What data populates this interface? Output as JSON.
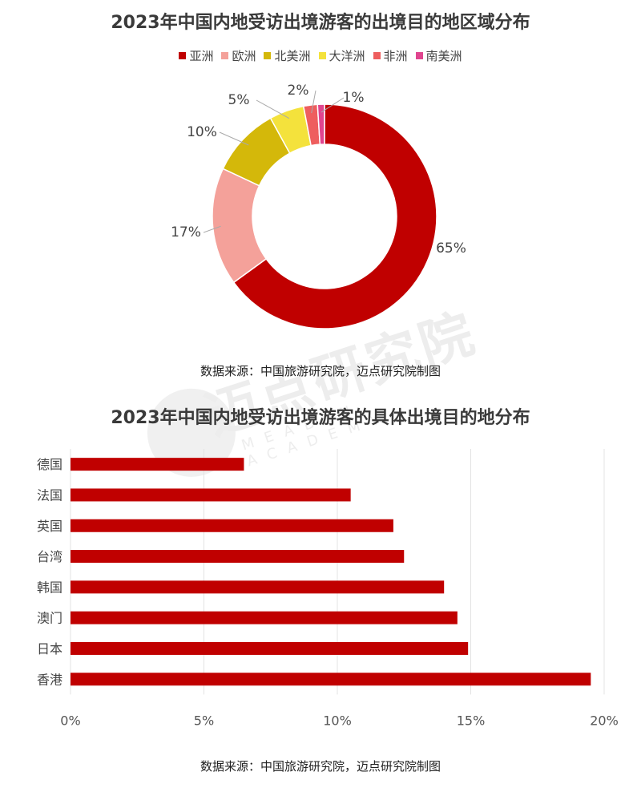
{
  "chart_data": [
    {
      "type": "pie",
      "title": "2023年中国内地受访出境游客的出境目的地区域分布",
      "legend_position": "top",
      "labels": [
        "亚洲",
        "欧洲",
        "北美洲",
        "大洋洲",
        "非洲",
        "南美洲"
      ],
      "values": [
        65,
        17,
        10,
        5,
        2,
        1
      ],
      "value_labels": [
        "65%",
        "17%",
        "10%",
        "5%",
        "2%",
        "1%"
      ],
      "colors": [
        "#C00000",
        "#F4A19A",
        "#D4B80A",
        "#F4E23C",
        "#EE5E5E",
        "#E0458F"
      ],
      "source": "数据来源：中国旅游研究院，迈点研究院制图"
    },
    {
      "type": "bar",
      "orientation": "horizontal",
      "title": "2023年中国内地受访出境游客的具体出境目的地分布",
      "categories": [
        "德国",
        "法国",
        "英国",
        "台湾",
        "韩国",
        "澳门",
        "日本",
        "香港"
      ],
      "values": [
        6.5,
        10.5,
        12.1,
        12.5,
        14.0,
        14.5,
        14.9,
        19.5
      ],
      "xlim": [
        0,
        20
      ],
      "x_ticks": [
        "0%",
        "5%",
        "10%",
        "15%",
        "20%"
      ],
      "grid": true,
      "color": "#C00000",
      "source": "数据来源：中国旅游研究院，迈点研究院制图"
    }
  ],
  "watermark": {
    "main": "迈点研究院",
    "sub": "MEADIN ACADEMY"
  }
}
